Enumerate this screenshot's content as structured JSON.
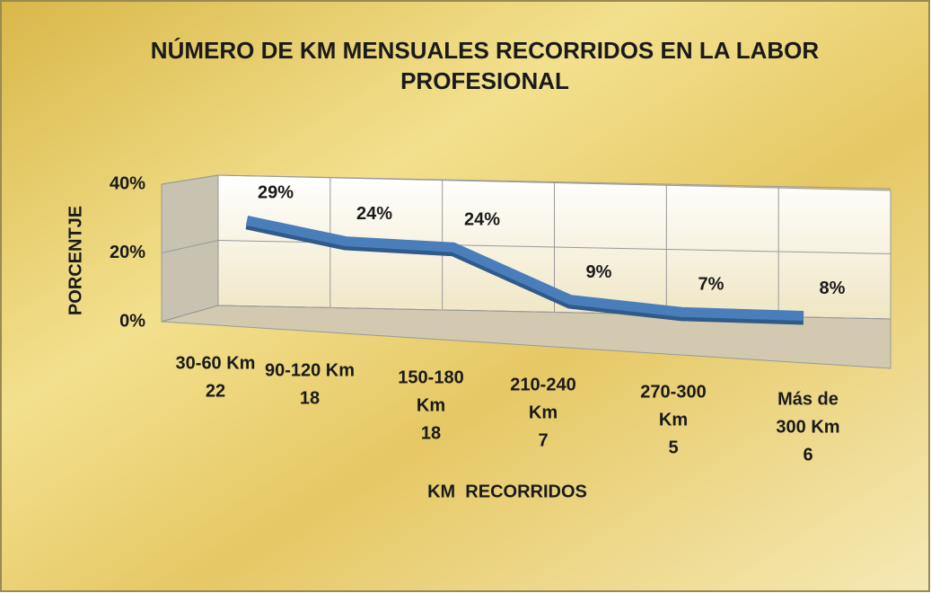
{
  "chart_data": {
    "type": "line3d",
    "title": [
      "NÚMERO DE KM MENSUALES RECORRIDOS EN LA LABOR",
      "PROFESIONAL"
    ],
    "categories": [
      [
        "30-60 Km",
        "22"
      ],
      [
        "90-120 Km",
        "18"
      ],
      [
        "150-180",
        "Km",
        "18"
      ],
      [
        "210-240",
        "Km",
        "7"
      ],
      [
        "270-300",
        "Km",
        "5"
      ],
      [
        "Más de",
        "300 Km",
        "6"
      ]
    ],
    "values": [
      29,
      24,
      24,
      9,
      7,
      8
    ],
    "value_labels": [
      "29%",
      "24%",
      "24%",
      "9%",
      "7%",
      "8%"
    ],
    "color": "#4a7ebb",
    "ylim": [
      0,
      40
    ],
    "yticks": [
      {
        "value": 0,
        "label": "0%"
      },
      {
        "value": 20,
        "label": "20%"
      },
      {
        "value": 40,
        "label": "40%"
      }
    ],
    "ylabel": "PORCENTJE",
    "xlabel": "KM  RECORRIDOS",
    "grid": true
  }
}
